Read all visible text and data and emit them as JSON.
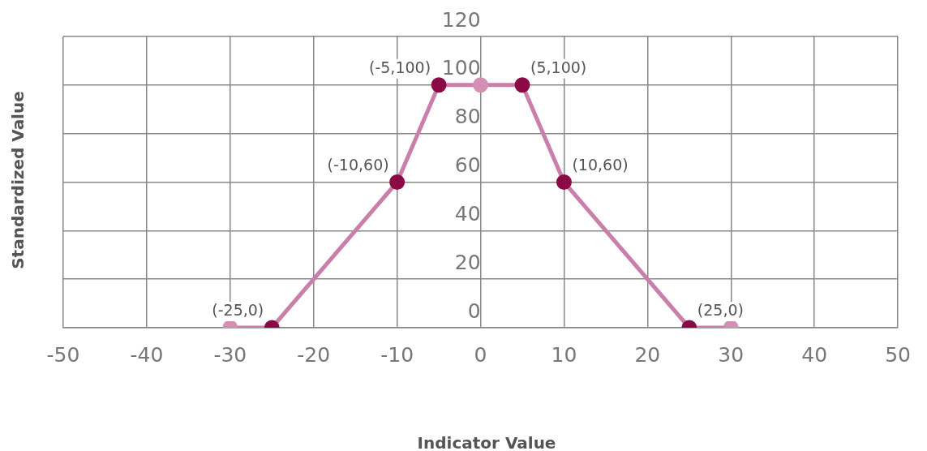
{
  "chart_data": {
    "type": "line",
    "xlabel": "Indicator Value",
    "ylabel": "Standardized Value",
    "x": [
      -30,
      -25,
      -10,
      -5,
      0,
      5,
      10,
      25,
      30
    ],
    "series": [
      {
        "color": "#c97fa9",
        "colors": [
          "#d48fb4",
          "#8b0a45",
          "#8b0a45",
          "#8b0a45",
          "#d48fb4",
          "#8b0a45",
          "#8b0a45",
          "#8b0a45",
          "#d48fb4"
        ],
        "values": [
          0,
          0,
          60,
          100,
          100,
          100,
          60,
          0,
          0
        ]
      }
    ],
    "xlim": [
      -50,
      50
    ],
    "xticks": [
      -50,
      -40,
      -30,
      -20,
      -10,
      0,
      10,
      20,
      30,
      40,
      50
    ],
    "ylim": [
      0,
      120
    ],
    "yticks": [
      0,
      20,
      40,
      60,
      80,
      100,
      120
    ],
    "grid": true,
    "legend": false,
    "marker": "circle",
    "line_style": "solid",
    "annotations": [
      {
        "text": "(-25,0)",
        "x": -25,
        "y": 0
      },
      {
        "text": "(-10,60)",
        "x": -10,
        "y": 60
      },
      {
        "text": "(-5,100)",
        "x": -5,
        "y": 100
      },
      {
        "text": "(5,100)",
        "x": 5,
        "y": 100
      },
      {
        "text": "(10,60)",
        "x": 10,
        "y": 60
      },
      {
        "text": "(25,0)",
        "x": 25,
        "y": 0
      }
    ]
  }
}
